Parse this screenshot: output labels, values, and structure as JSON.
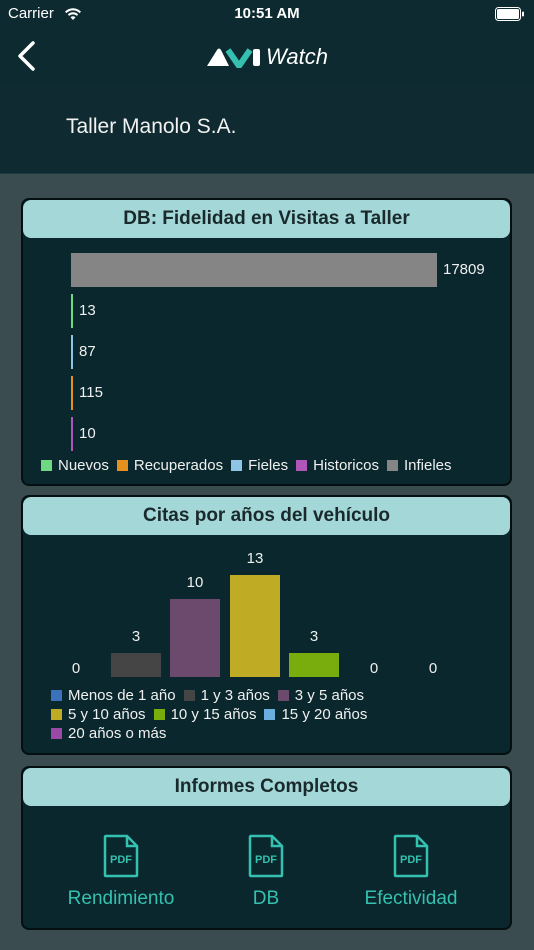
{
  "status_bar": {
    "carrier": "Carrier",
    "time": "10:51 AM"
  },
  "nav": {
    "logo_text": "Watch",
    "icons": [
      "back-chevron-icon",
      "app-logo"
    ]
  },
  "header": {
    "workshop_name": "Taller Manolo S.A."
  },
  "fidelity_card": {
    "title": "DB: Fidelidad en Visitas a Taller",
    "chart_data": {
      "type": "bar",
      "orientation": "horizontal",
      "title": "DB: Fidelidad en Visitas a Taller",
      "categories": [
        "Infieles",
        "Nuevos",
        "Fieles",
        "Recuperados",
        "Historicos"
      ],
      "values": [
        17809,
        13,
        87,
        115,
        10
      ],
      "colors": [
        "#858585",
        "#6ed982",
        "#8ec4e6",
        "#e6901e",
        "#b056b8"
      ],
      "legend": [
        {
          "label": "Nuevos",
          "color": "#6ed982"
        },
        {
          "label": "Recuperados",
          "color": "#e6901e"
        },
        {
          "label": "Fieles",
          "color": "#8ec4e6"
        },
        {
          "label": "Historicos",
          "color": "#b056b8"
        },
        {
          "label": "Infieles",
          "color": "#858585"
        }
      ],
      "legend_position": "bottom",
      "xlim": [
        0,
        17809
      ]
    }
  },
  "years_card": {
    "title": "Citas por años del vehículo",
    "chart_data": {
      "type": "bar",
      "title": "Citas por años del vehículo",
      "categories": [
        "Menos de 1 año",
        "1 y 3 años",
        "3 y 5 años",
        "5 y 10 años",
        "10 y 15 años",
        "15 y 20 años",
        "20 años o más"
      ],
      "values": [
        0,
        3,
        10,
        13,
        3,
        0,
        0
      ],
      "colors": [
        "#3a72bc",
        "#454545",
        "#6b4a6e",
        "#bfab24",
        "#79ac0d",
        "#6aaee0",
        "#9a4aa6"
      ],
      "legend_position": "bottom",
      "ylim": [
        0,
        13
      ]
    }
  },
  "reports_card": {
    "title": "Informes Completos",
    "items": [
      {
        "label": "Rendimiento",
        "icon": "pdf-icon"
      },
      {
        "label": "DB",
        "icon": "pdf-icon"
      },
      {
        "label": "Efectividad",
        "icon": "pdf-icon"
      }
    ]
  },
  "colors": {
    "accent": "#35c0b0",
    "card_title_bg": "#a3d7d8",
    "nav_bg": "#0c2a30",
    "page_bg": "#3a4c4f"
  }
}
